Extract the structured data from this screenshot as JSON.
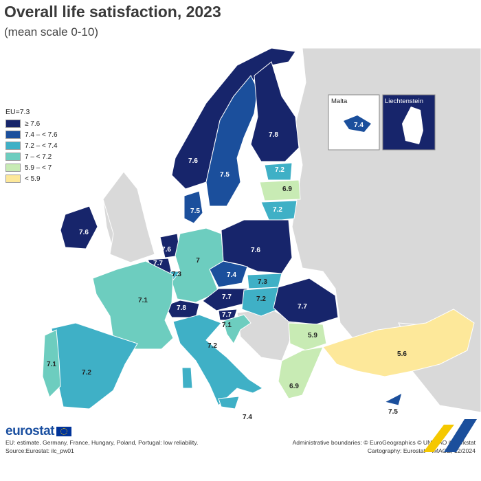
{
  "header": {
    "title": "Overall life satisfaction, 2023",
    "subtitle": "(mean scale 0-10)"
  },
  "legend": {
    "eu_label": "EU=7.3",
    "classes": [
      {
        "label": "≥ 7.6",
        "color": "#17256b"
      },
      {
        "label": "7.4 – < 7.6",
        "color": "#1b4f9c"
      },
      {
        "label": "7.2 – < 7.4",
        "color": "#3fb0c6"
      },
      {
        "label": "7 – < 7.2",
        "color": "#6dcdbf"
      },
      {
        "label": "5.9 – < 7",
        "color": "#c8ebb4"
      },
      {
        "label": "< 5.9",
        "color": "#fde89a"
      }
    ]
  },
  "colors": {
    "sea": "#ffffff",
    "no_data_land": "#d9d9d9",
    "border": "#ffffff"
  },
  "insets": [
    {
      "name": "Malta",
      "value": "7.4"
    },
    {
      "name": "Liechtenstein",
      "value": ""
    }
  ],
  "regions": [
    {
      "name": "Norway",
      "value": "7.6"
    },
    {
      "name": "Sweden",
      "value": "7.5"
    },
    {
      "name": "Finland",
      "value": "7.8"
    },
    {
      "name": "Estonia",
      "value": "7.2"
    },
    {
      "name": "Latvia",
      "value": "6.9"
    },
    {
      "name": "Lithuania",
      "value": "7.2"
    },
    {
      "name": "Denmark",
      "value": "7.5"
    },
    {
      "name": "Ireland",
      "value": "7.6"
    },
    {
      "name": "Netherlands",
      "value": "7.6"
    },
    {
      "name": "Belgium",
      "value": "7.7"
    },
    {
      "name": "Luxembourg",
      "value": "7.3"
    },
    {
      "name": "Germany",
      "value": "7"
    },
    {
      "name": "Poland",
      "value": "7.6"
    },
    {
      "name": "Czechia",
      "value": "7.4"
    },
    {
      "name": "Slovakia",
      "value": "7.3"
    },
    {
      "name": "Hungary",
      "value": "7.2"
    },
    {
      "name": "Austria",
      "value": "7.7"
    },
    {
      "name": "Switzerland",
      "value": "7.8"
    },
    {
      "name": "Slovenia",
      "value": "7.7"
    },
    {
      "name": "Croatia",
      "value": "7.1"
    },
    {
      "name": "Romania",
      "value": "7.7"
    },
    {
      "name": "Bulgaria",
      "value": "5.9"
    },
    {
      "name": "France",
      "value": "7.1"
    },
    {
      "name": "Spain",
      "value": "7.2"
    },
    {
      "name": "Portugal",
      "value": "7.1"
    },
    {
      "name": "Italy",
      "value": "7.2"
    },
    {
      "name": "Greece",
      "value": "6.9"
    },
    {
      "name": "Türkiye",
      "value": "5.6"
    },
    {
      "name": "Cyprus",
      "value": "7.5"
    },
    {
      "name": "Malta",
      "value": "7.4"
    }
  ],
  "footer": {
    "note": "EU: estimate. Germany, France, Hungary, Poland, Portugal: low reliability.",
    "source": "Source:Eurostat: ilc_pw01",
    "boundaries": "Administrative boundaries: © EuroGeographics © UN–FAO © Turkstat",
    "cartography": "Cartography: Eurostat – IMAGE, 12/2024",
    "logo": "eurostat"
  }
}
